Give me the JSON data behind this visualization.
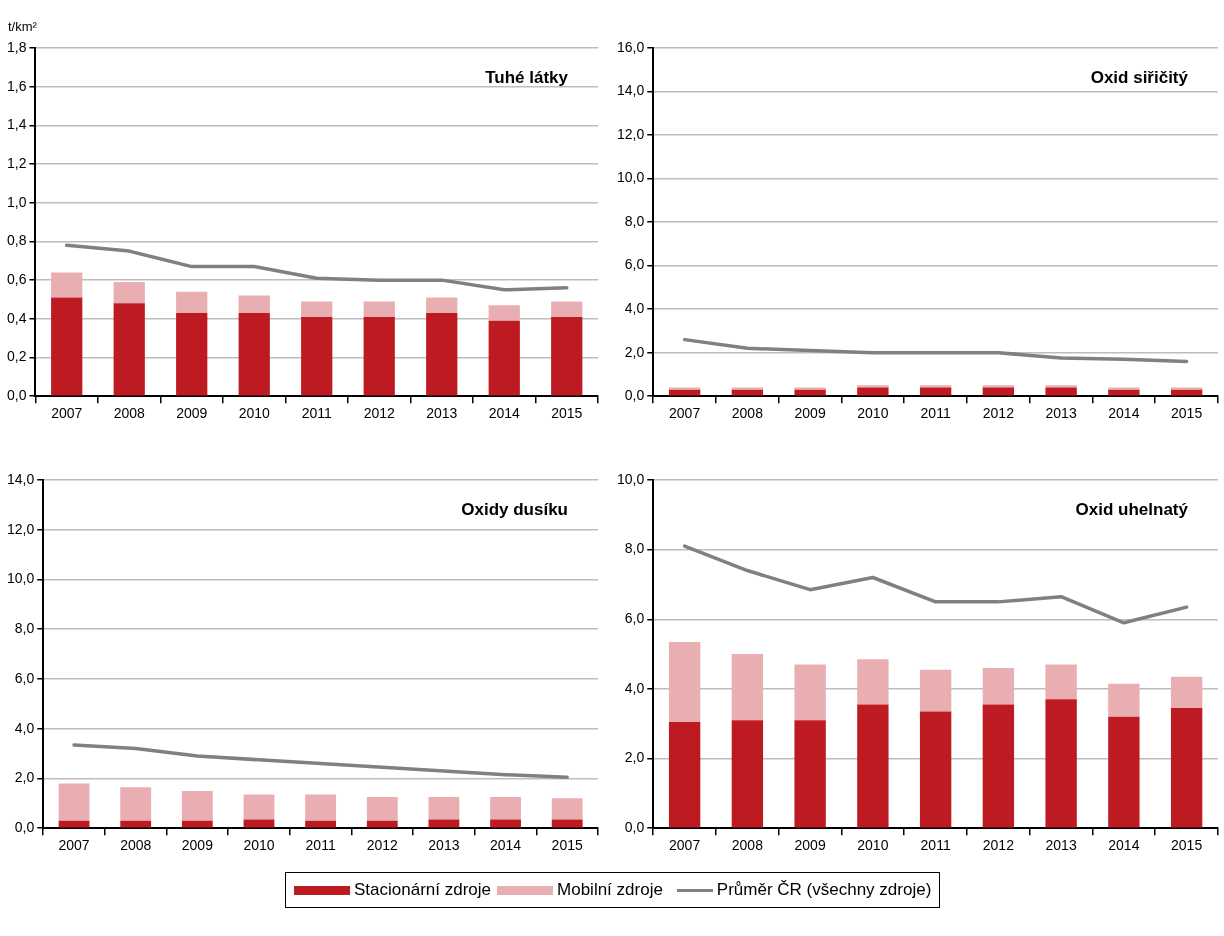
{
  "chart_data": [
    {
      "type": "bar",
      "title": "Tuhé látky",
      "ylabel": "t/km²",
      "stacked": true,
      "grid": "y",
      "legend": "bottom",
      "categories": [
        "2007",
        "2008",
        "2009",
        "2010",
        "2011",
        "2012",
        "2013",
        "2014",
        "2015"
      ],
      "ylim": [
        0,
        1.8
      ],
      "yticks": [
        {
          "value": 0,
          "label": "0,0"
        },
        {
          "value": 0.2,
          "label": "0,2"
        },
        {
          "value": 0.4,
          "label": "0,4"
        },
        {
          "value": 0.6,
          "label": "0,6"
        },
        {
          "value": 0.8,
          "label": "0,8"
        },
        {
          "value": 1.0,
          "label": "1,0"
        },
        {
          "value": 1.2,
          "label": "1,2"
        },
        {
          "value": 1.4,
          "label": "1,4"
        },
        {
          "value": 1.6,
          "label": "1,6"
        },
        {
          "value": 1.8,
          "label": "1,8"
        }
      ],
      "series": [
        {
          "name": "Stacionární zdroje",
          "color": "#be1a22",
          "values": [
            0.51,
            0.48,
            0.43,
            0.43,
            0.41,
            0.41,
            0.43,
            0.39,
            0.41
          ]
        },
        {
          "name": "Mobilní zdroje",
          "color": "#e8aeb1",
          "values": [
            0.13,
            0.11,
            0.11,
            0.09,
            0.08,
            0.08,
            0.08,
            0.08,
            0.08
          ]
        },
        {
          "name": "Průměr ČR (všechny zdroje)",
          "type": "line",
          "color": "#808080",
          "values": [
            0.78,
            0.75,
            0.67,
            0.67,
            0.61,
            0.6,
            0.6,
            0.55,
            0.56
          ]
        }
      ]
    },
    {
      "type": "bar",
      "title": "Oxid siřičitý",
      "stacked": true,
      "grid": "y",
      "categories": [
        "2007",
        "2008",
        "2009",
        "2010",
        "2011",
        "2012",
        "2013",
        "2014",
        "2015"
      ],
      "ylim": [
        0,
        16
      ],
      "yticks": [
        {
          "value": 0,
          "label": "0,0"
        },
        {
          "value": 2,
          "label": "2,0"
        },
        {
          "value": 4,
          "label": "4,0"
        },
        {
          "value": 6,
          "label": "6,0"
        },
        {
          "value": 8,
          "label": "8,0"
        },
        {
          "value": 10,
          "label": "10,0"
        },
        {
          "value": 12,
          "label": "12,0"
        },
        {
          "value": 14,
          "label": "14,0"
        },
        {
          "value": 16,
          "label": "16,0"
        }
      ],
      "series": [
        {
          "color": "#be1a22",
          "values": [
            0.3,
            0.3,
            0.3,
            0.4,
            0.4,
            0.4,
            0.4,
            0.3,
            0.3
          ]
        },
        {
          "color": "#e8aeb1",
          "values": [
            0.1,
            0.1,
            0.1,
            0.1,
            0.1,
            0.1,
            0.1,
            0.1,
            0.1
          ]
        },
        {
          "type": "line",
          "color": "#808080",
          "values": [
            2.6,
            2.2,
            2.1,
            2.0,
            2.0,
            2.0,
            1.75,
            1.7,
            1.6
          ]
        }
      ]
    },
    {
      "type": "bar",
      "title": "Oxidy dusíku",
      "stacked": true,
      "grid": "y",
      "categories": [
        "2007",
        "2008",
        "2009",
        "2010",
        "2011",
        "2012",
        "2013",
        "2014",
        "2015"
      ],
      "ylim": [
        0,
        14
      ],
      "yticks": [
        {
          "value": 0,
          "label": "0,0"
        },
        {
          "value": 2,
          "label": "2,0"
        },
        {
          "value": 4,
          "label": "4,0"
        },
        {
          "value": 6,
          "label": "6,0"
        },
        {
          "value": 8,
          "label": "8,0"
        },
        {
          "value": 10,
          "label": "10,0"
        },
        {
          "value": 12,
          "label": "12,0"
        },
        {
          "value": 14,
          "label": "14,0"
        }
      ],
      "series": [
        {
          "color": "#be1a22",
          "values": [
            0.3,
            0.3,
            0.3,
            0.35,
            0.3,
            0.3,
            0.35,
            0.35,
            0.35
          ]
        },
        {
          "color": "#e8aeb1",
          "values": [
            1.5,
            1.35,
            1.2,
            1.0,
            1.05,
            0.95,
            0.9,
            0.9,
            0.85
          ]
        },
        {
          "type": "line",
          "color": "#808080",
          "values": [
            3.35,
            3.2,
            2.9,
            2.75,
            2.6,
            2.45,
            2.3,
            2.15,
            2.05
          ]
        }
      ]
    },
    {
      "type": "bar",
      "title": "Oxid uhelnatý",
      "stacked": true,
      "grid": "y",
      "categories": [
        "2007",
        "2008",
        "2009",
        "2010",
        "2011",
        "2012",
        "2013",
        "2014",
        "2015"
      ],
      "ylim": [
        0,
        10
      ],
      "yticks": [
        {
          "value": 0,
          "label": "0,0"
        },
        {
          "value": 2,
          "label": "2,0"
        },
        {
          "value": 4,
          "label": "4,0"
        },
        {
          "value": 6,
          "label": "6,0"
        },
        {
          "value": 8,
          "label": "8,0"
        },
        {
          "value": 10,
          "label": "10,0"
        }
      ],
      "series": [
        {
          "color": "#be1a22",
          "values": [
            3.05,
            3.1,
            3.1,
            3.55,
            3.35,
            3.55,
            3.7,
            3.2,
            3.45
          ]
        },
        {
          "color": "#e8aeb1",
          "values": [
            2.3,
            1.9,
            1.6,
            1.3,
            1.2,
            1.05,
            1.0,
            0.95,
            0.9
          ]
        },
        {
          "type": "line",
          "color": "#808080",
          "values": [
            8.1,
            7.4,
            6.85,
            7.2,
            6.5,
            6.5,
            6.65,
            5.9,
            6.35
          ]
        }
      ]
    }
  ]
}
